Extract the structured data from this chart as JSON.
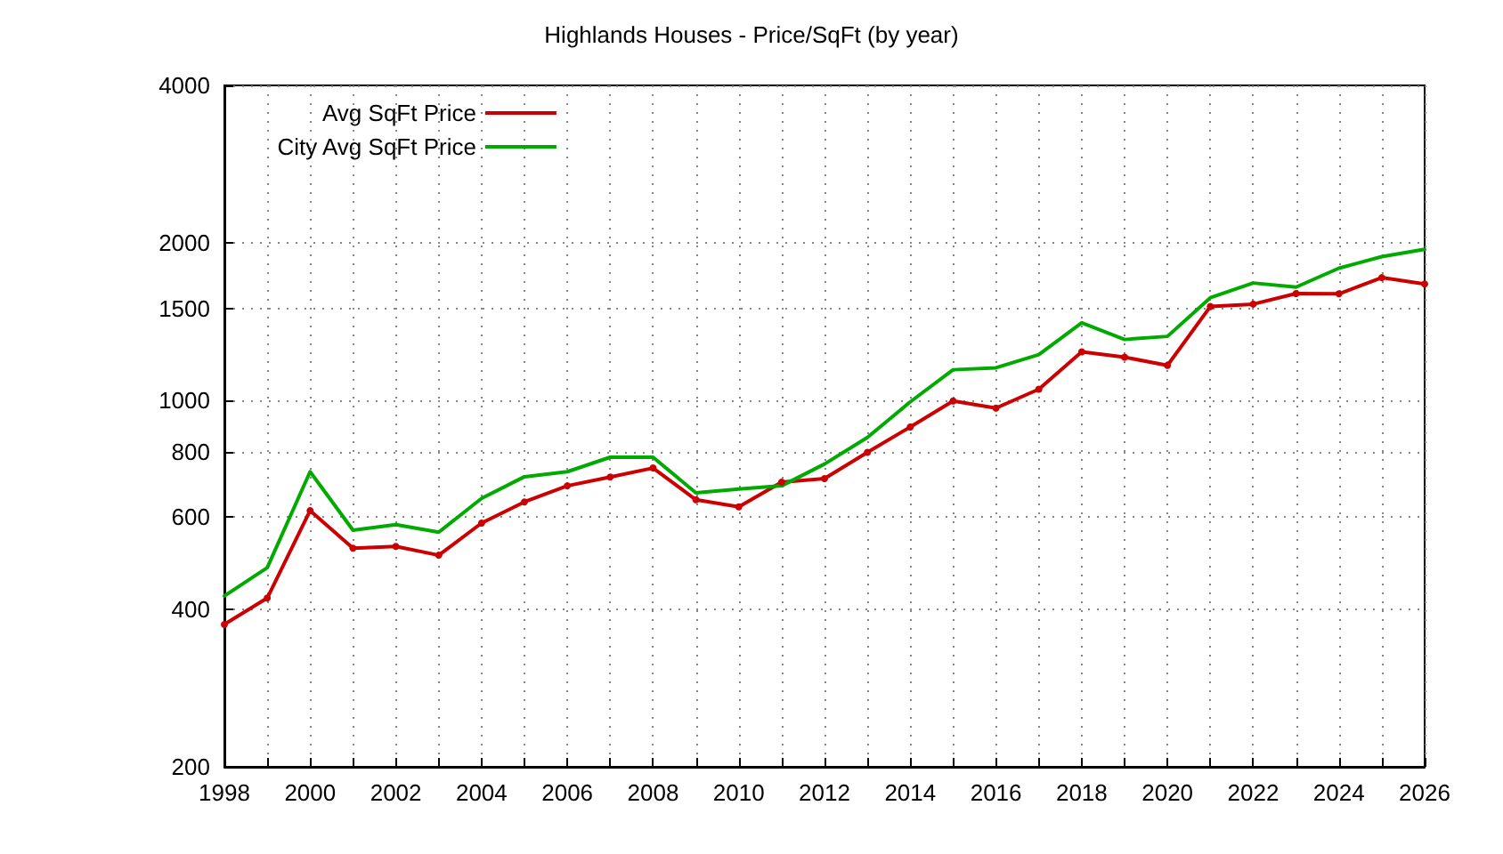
{
  "chart_data": {
    "type": "line",
    "title": "Highlands Houses - Price/SqFt (by year)",
    "x": [
      1998,
      1999,
      2000,
      2001,
      2002,
      2003,
      2004,
      2005,
      2006,
      2007,
      2008,
      2009,
      2010,
      2011,
      2012,
      2013,
      2014,
      2015,
      2016,
      2017,
      2018,
      2019,
      2020,
      2021,
      2022,
      2023,
      2024,
      2025,
      2026
    ],
    "series": [
      {
        "name": "Avg SqFt Price",
        "color": "#cc0000",
        "marker": "circle",
        "values": [
          374,
          420,
          617,
          523,
          527,
          507,
          584,
          641,
          688,
          715,
          744,
          647,
          627,
          699,
          710,
          797,
          891,
          999,
          968,
          1052,
          1240,
          1211,
          1168,
          1513,
          1529,
          1602,
          1600,
          1718,
          1671
        ]
      },
      {
        "name": "City Avg SqFt Price",
        "color": "#00aa00",
        "marker": "none",
        "values": [
          424,
          480,
          732,
          566,
          580,
          561,
          651,
          716,
          732,
          780,
          780,
          667,
          678,
          688,
          757,
          851,
          995,
          1146,
          1156,
          1225,
          1409,
          1309,
          1327,
          1573,
          1678,
          1648,
          1791,
          1884,
          1946
        ]
      }
    ],
    "xlim": [
      1998,
      2026
    ],
    "xticks": [
      1998,
      {
        "value": 1999,
        "label": null
      },
      2000,
      {
        "value": 2001,
        "label": null
      },
      2002,
      {
        "value": 2003,
        "label": null
      },
      2004,
      {
        "value": 2005,
        "label": null
      },
      2006,
      {
        "value": 2007,
        "label": null
      },
      2008,
      {
        "value": 2009,
        "label": null
      },
      2010,
      {
        "value": 2011,
        "label": null
      },
      2012,
      {
        "value": 2013,
        "label": null
      },
      2014,
      {
        "value": 2015,
        "label": null
      },
      2016,
      {
        "value": 2017,
        "label": null
      },
      2018,
      {
        "value": 2019,
        "label": null
      },
      2020,
      {
        "value": 2021,
        "label": null
      },
      2022,
      {
        "value": 2023,
        "label": null
      },
      2024,
      {
        "value": 2025,
        "label": null
      },
      2026
    ],
    "ylim": [
      200,
      4000
    ],
    "yticks": [
      200,
      400,
      600,
      800,
      1000,
      1500,
      2000,
      4000
    ],
    "log": "y",
    "grid": true,
    "legend": "top left",
    "line_style": "solid"
  }
}
